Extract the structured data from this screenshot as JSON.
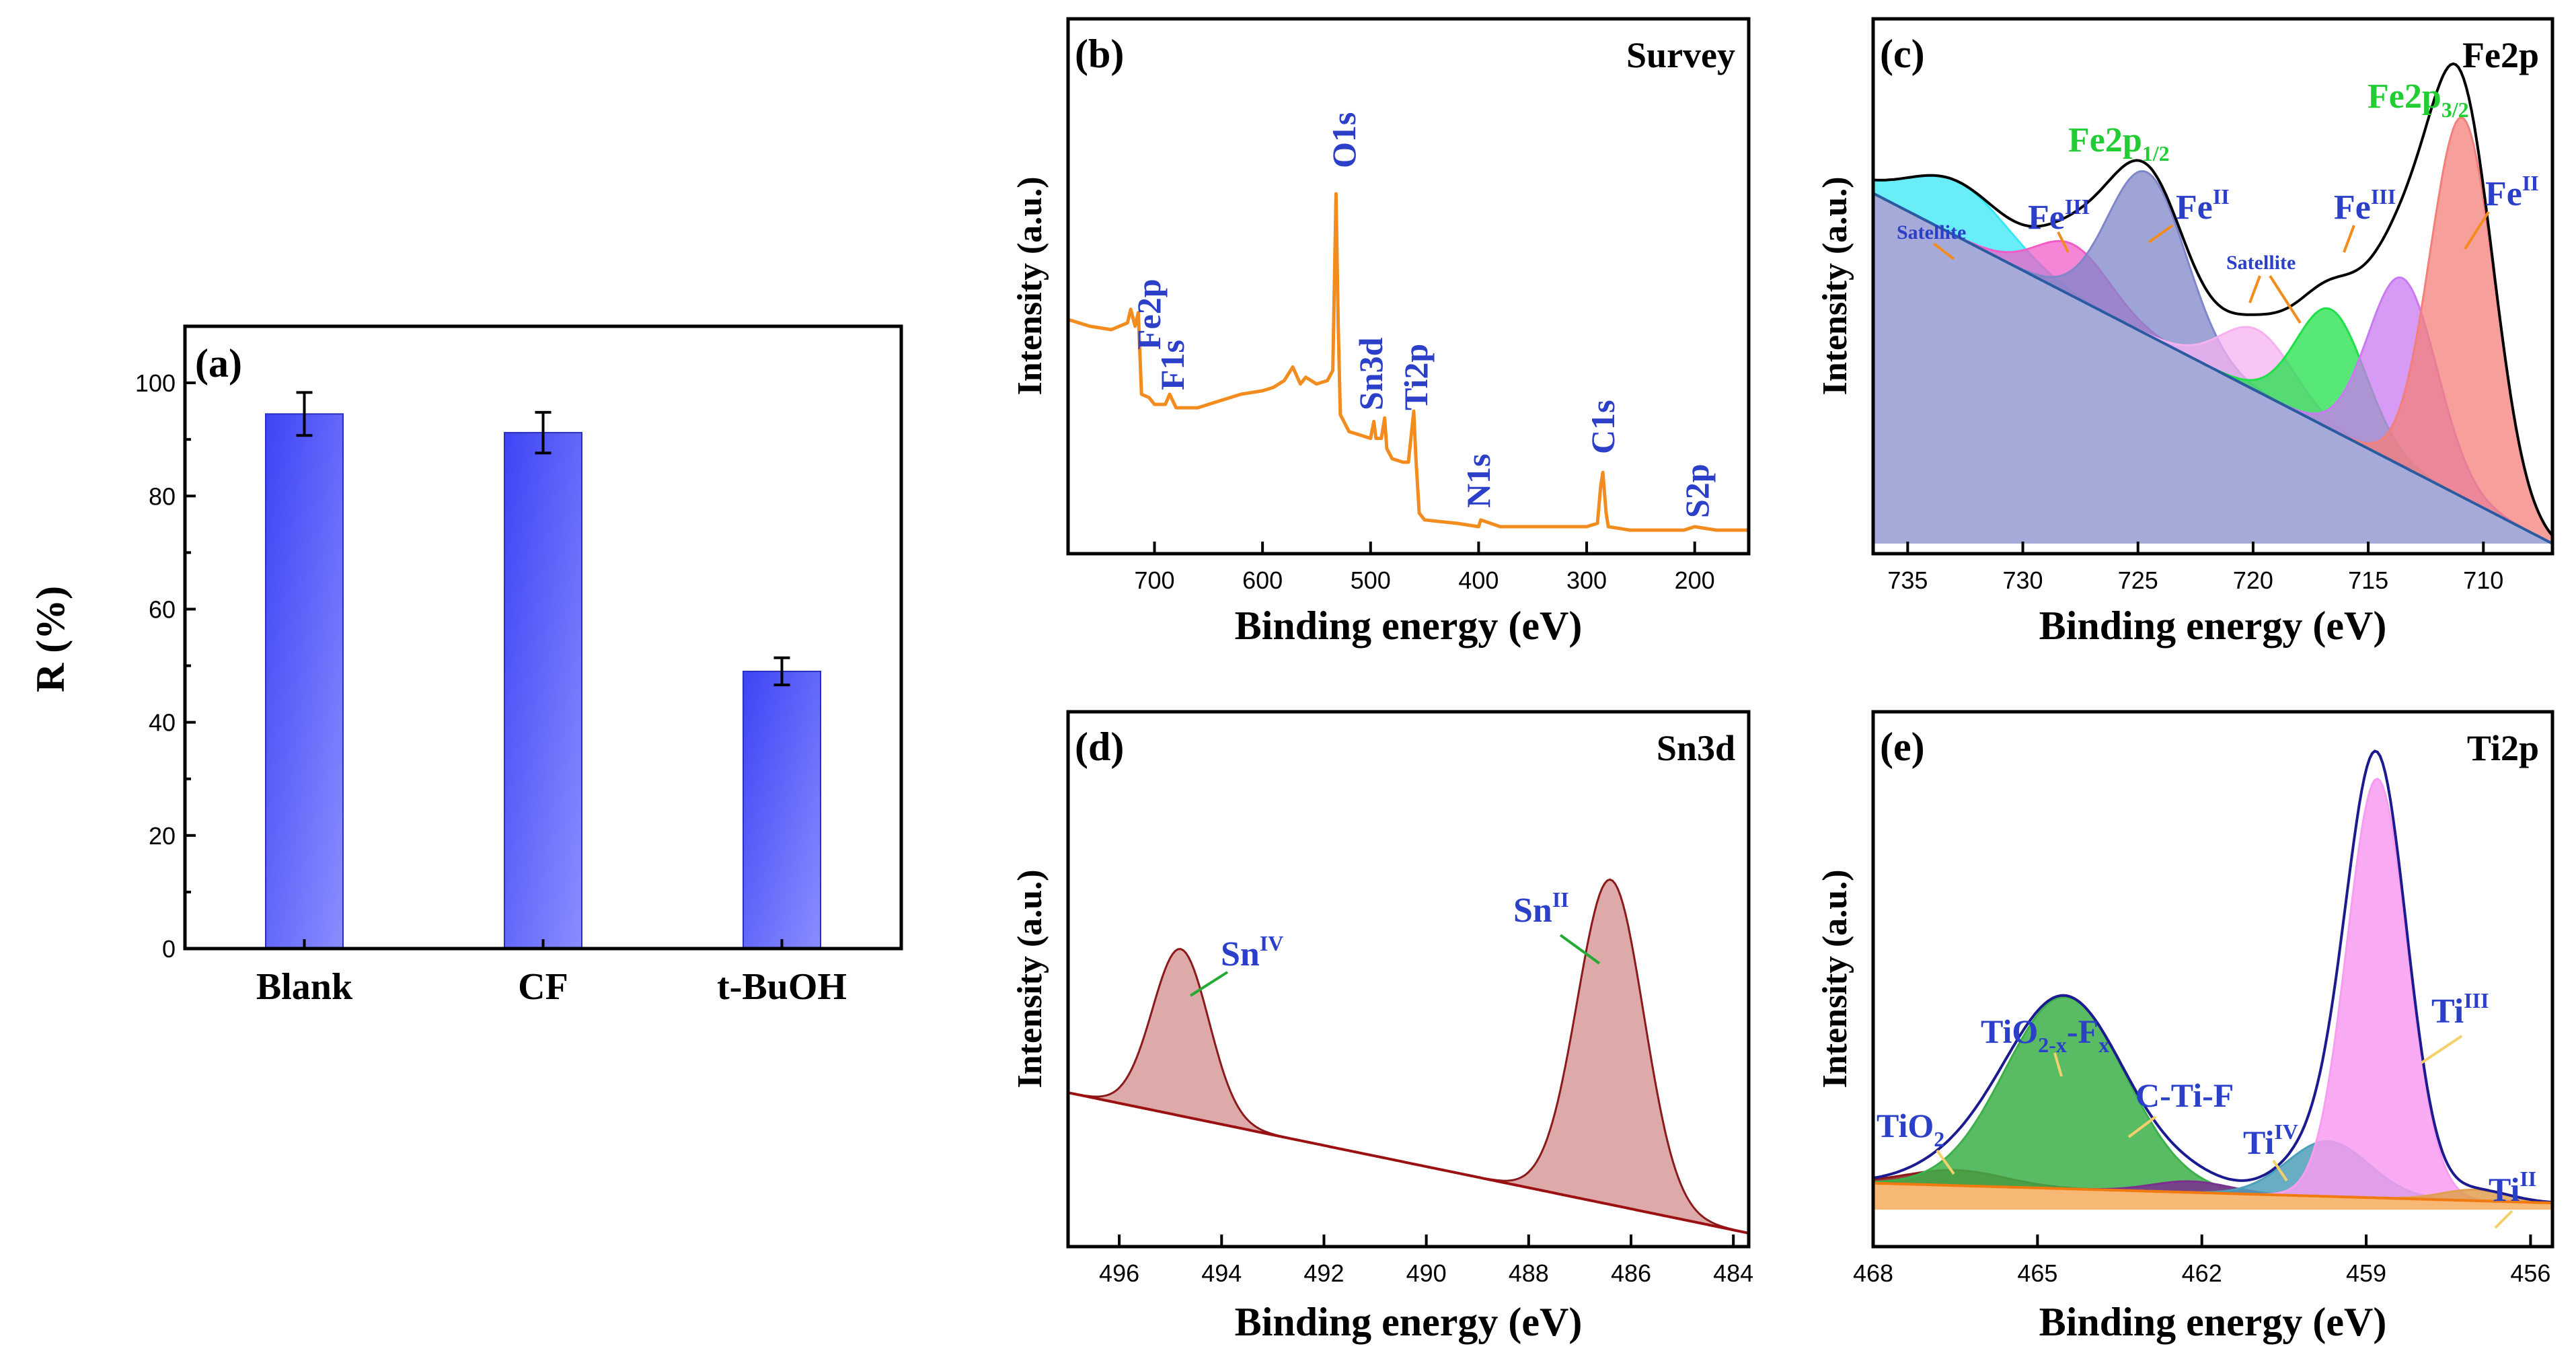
{
  "chart_data": [
    {
      "id": "a",
      "type": "bar",
      "panel_label": "(a)",
      "ylabel": "R (%)",
      "xlabel": "",
      "categories": [
        "Blank",
        "CF",
        "t-BuOH"
      ],
      "values": [
        94.5,
        91.2,
        49.0
      ],
      "errors": [
        3.8,
        3.6,
        2.4
      ],
      "ylim": [
        0,
        110
      ],
      "yticks": [
        "0",
        "20",
        "40",
        "60",
        "80",
        "100"
      ],
      "bar_color": "#5d62ff"
    },
    {
      "id": "b",
      "type": "line",
      "panel_label": "(b)",
      "title": "Survey",
      "xlabel": "Binding energy (eV)",
      "ylabel": "Intensity (a.u.)",
      "xlim": [
        780,
        150
      ],
      "xticks": [
        "700",
        "600",
        "500",
        "400",
        "300",
        "200"
      ],
      "line_color": "#f28c1e",
      "series": [
        {
          "name": "Survey",
          "x": [
            780,
            760,
            740,
            725,
            722,
            718,
            715,
            712,
            705,
            700,
            695,
            690,
            686,
            680,
            660,
            640,
            620,
            600,
            590,
            580,
            572,
            565,
            560,
            550,
            540,
            535,
            532,
            530,
            528,
            520,
            510,
            500,
            497,
            495,
            490,
            487,
            485,
            480,
            470,
            465,
            462,
            460,
            458,
            455,
            450,
            420,
            400,
            398,
            380,
            360,
            340,
            320,
            300,
            290,
            287,
            285,
            282,
            280,
            260,
            230,
            210,
            200,
            180,
            160,
            150
          ],
          "y": [
            63,
            61,
            60,
            62,
            66,
            61,
            65,
            41,
            40,
            38,
            38,
            38,
            41,
            37,
            37,
            39,
            41,
            42,
            43,
            45,
            49,
            44,
            46,
            44,
            45,
            48,
            100,
            62,
            35,
            30,
            29,
            28,
            33,
            28,
            28,
            34,
            25,
            22,
            21,
            21,
            30,
            36,
            22,
            6,
            4,
            3,
            2,
            4,
            2,
            2,
            2,
            2,
            2,
            3,
            14,
            18,
            6,
            2,
            1,
            1,
            1,
            2,
            1,
            1,
            1
          ]
        }
      ],
      "annotations": [
        "Fe2p",
        "F1s",
        "O1s",
        "Sn3d",
        "Ti2p",
        "N1s",
        "C1s",
        "S2p"
      ]
    },
    {
      "id": "c",
      "type": "area",
      "panel_label": "(c)",
      "title": "Fe2p",
      "xlabel": "Binding energy (eV)",
      "ylabel": "Intensity (a.u.)",
      "xlim": [
        736.5,
        707
      ],
      "xticks": [
        "735",
        "730",
        "725",
        "720",
        "715",
        "710"
      ],
      "series": [
        {
          "name": "Satellite",
          "center": 732.8,
          "amplitude": 17,
          "width": 2.2,
          "color": "#37e8f4"
        },
        {
          "name": "Fe^III",
          "center": 727.8,
          "amplitude": 16,
          "width": 1.6,
          "color": "#f25cc8"
        },
        {
          "name": "Fe^II",
          "center": 724.6,
          "amplitude": 50,
          "width": 1.7,
          "color": "#7f86c9"
        },
        {
          "name": "Satellite",
          "center": 719.8,
          "amplitude": 19,
          "width": 1.6,
          "color": "#f5b1f0"
        },
        {
          "name": "Fe2p3/2 satellite",
          "center": 716.6,
          "amplitude": 37,
          "width": 1.5,
          "color": "#1fe049"
        },
        {
          "name": "Fe^III",
          "center": 713.5,
          "amplitude": 58,
          "width": 1.5,
          "color": "#c97af2"
        },
        {
          "name": "Fe^II",
          "center": 710.9,
          "amplitude": 117,
          "width": 1.4,
          "color": "#f37f7a"
        }
      ],
      "background": {
        "start": 108,
        "end": 0
      },
      "annotations": [
        "Satellite",
        "Fe",
        "III",
        "Fe2p",
        "1/2",
        "Fe",
        "II",
        "Satellite",
        "Fe2p",
        "3/2",
        "Fe",
        "III",
        "Fe",
        "II"
      ]
    },
    {
      "id": "d",
      "type": "area",
      "panel_label": "(d)",
      "title": "Sn3d",
      "xlabel": "Binding energy (eV)",
      "ylabel": "Intensity (a.u.)",
      "xlim": [
        497,
        483.7
      ],
      "xticks": [
        "496",
        "494",
        "492",
        "490",
        "488",
        "486",
        "484"
      ],
      "series": [
        {
          "name": "Sn^IV",
          "center": 494.8,
          "amplitude": 95,
          "width": 0.55,
          "color": "#d9a0a0"
        },
        {
          "name": "Sn^II",
          "center": 486.4,
          "amplitude": 185,
          "width": 0.65,
          "color": "#d9a0a0"
        }
      ],
      "background": {
        "start": 80,
        "end": 0
      },
      "annotations": [
        "Sn",
        "IV",
        "Sn",
        "II"
      ]
    },
    {
      "id": "e",
      "type": "area",
      "panel_label": "(e)",
      "title": "Ti2p",
      "xlabel": "Binding energy (eV)",
      "ylabel": "Intensity (a.u.)",
      "xlim": [
        468,
        455.6
      ],
      "xticks": [
        "468",
        "465",
        "462",
        "459",
        "456"
      ],
      "series": [
        {
          "name": "TiO2",
          "center": 466.5,
          "amplitude": 7,
          "width": 0.9,
          "color": "#8b1a1a"
        },
        {
          "name": "TiO2-x-Fx",
          "center": 464.5,
          "amplitude": 87,
          "width": 1.1,
          "color": "#3cb049"
        },
        {
          "name": "C-Ti-F",
          "center": 462.2,
          "amplitude": 5,
          "width": 0.7,
          "color": "#7b2f8f"
        },
        {
          "name": "Ti^IV",
          "center": 459.7,
          "amplitude": 25,
          "width": 0.75,
          "color": "#4d9fba"
        },
        {
          "name": "Ti^III",
          "center": 458.8,
          "amplitude": 190,
          "width": 0.55,
          "color": "#f79cf0"
        },
        {
          "name": "Ti^II",
          "center": 457.0,
          "amplitude": 5,
          "width": 0.6,
          "color": "#e0a050"
        }
      ],
      "background": {
        "start": 12,
        "end": 3
      },
      "annotations": [
        "TiO",
        "2",
        "TiO",
        "2-x",
        "-F",
        "x",
        "C-Ti-F",
        "Ti",
        "IV",
        "Ti",
        "III",
        "Ti",
        "II"
      ]
    }
  ]
}
